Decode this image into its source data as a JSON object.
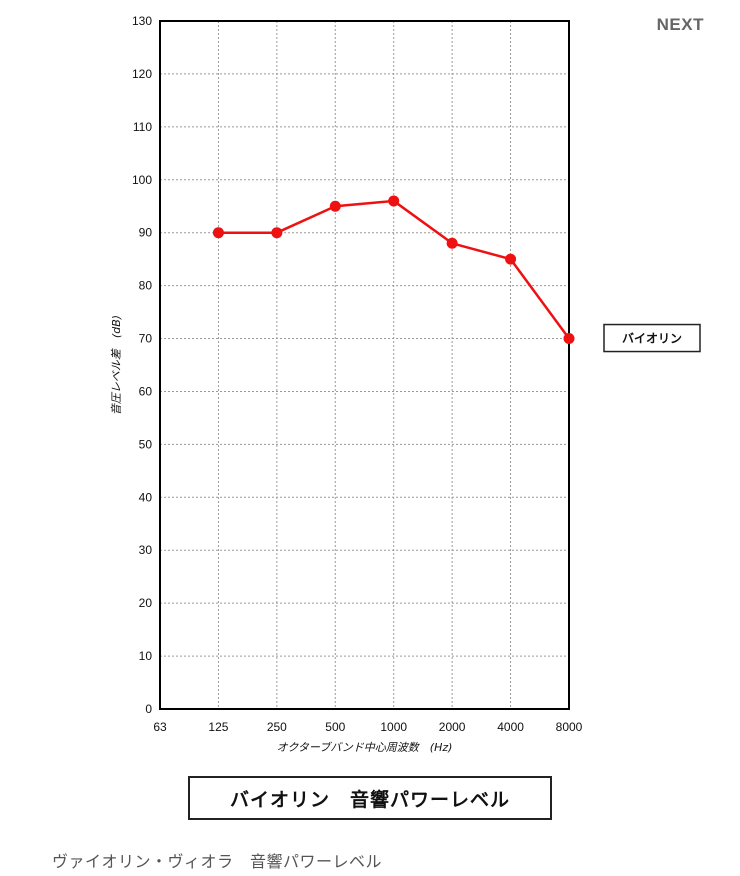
{
  "header": {
    "next_label": "NEXT"
  },
  "chart_data": {
    "type": "line",
    "title": "バイオリン　音響パワーレベル",
    "xlabel": "オクターブバンド中心周波数　(Hz)",
    "ylabel": "音圧レベル差　(dB)",
    "categories": [
      "63",
      "125",
      "250",
      "500",
      "1000",
      "2000",
      "4000",
      "8000"
    ],
    "ylim": [
      0,
      130
    ],
    "yticks": [
      0,
      10,
      20,
      30,
      40,
      50,
      60,
      70,
      80,
      90,
      100,
      110,
      120,
      130
    ],
    "grid": true,
    "legend_position": "right",
    "series": [
      {
        "name": "バイオリン",
        "color": "#ee1111",
        "values": [
          null,
          90,
          90,
          95,
          96,
          88,
          85,
          70
        ]
      }
    ]
  },
  "caption": "ヴァイオリン・ヴィオラ　音響パワーレベル"
}
